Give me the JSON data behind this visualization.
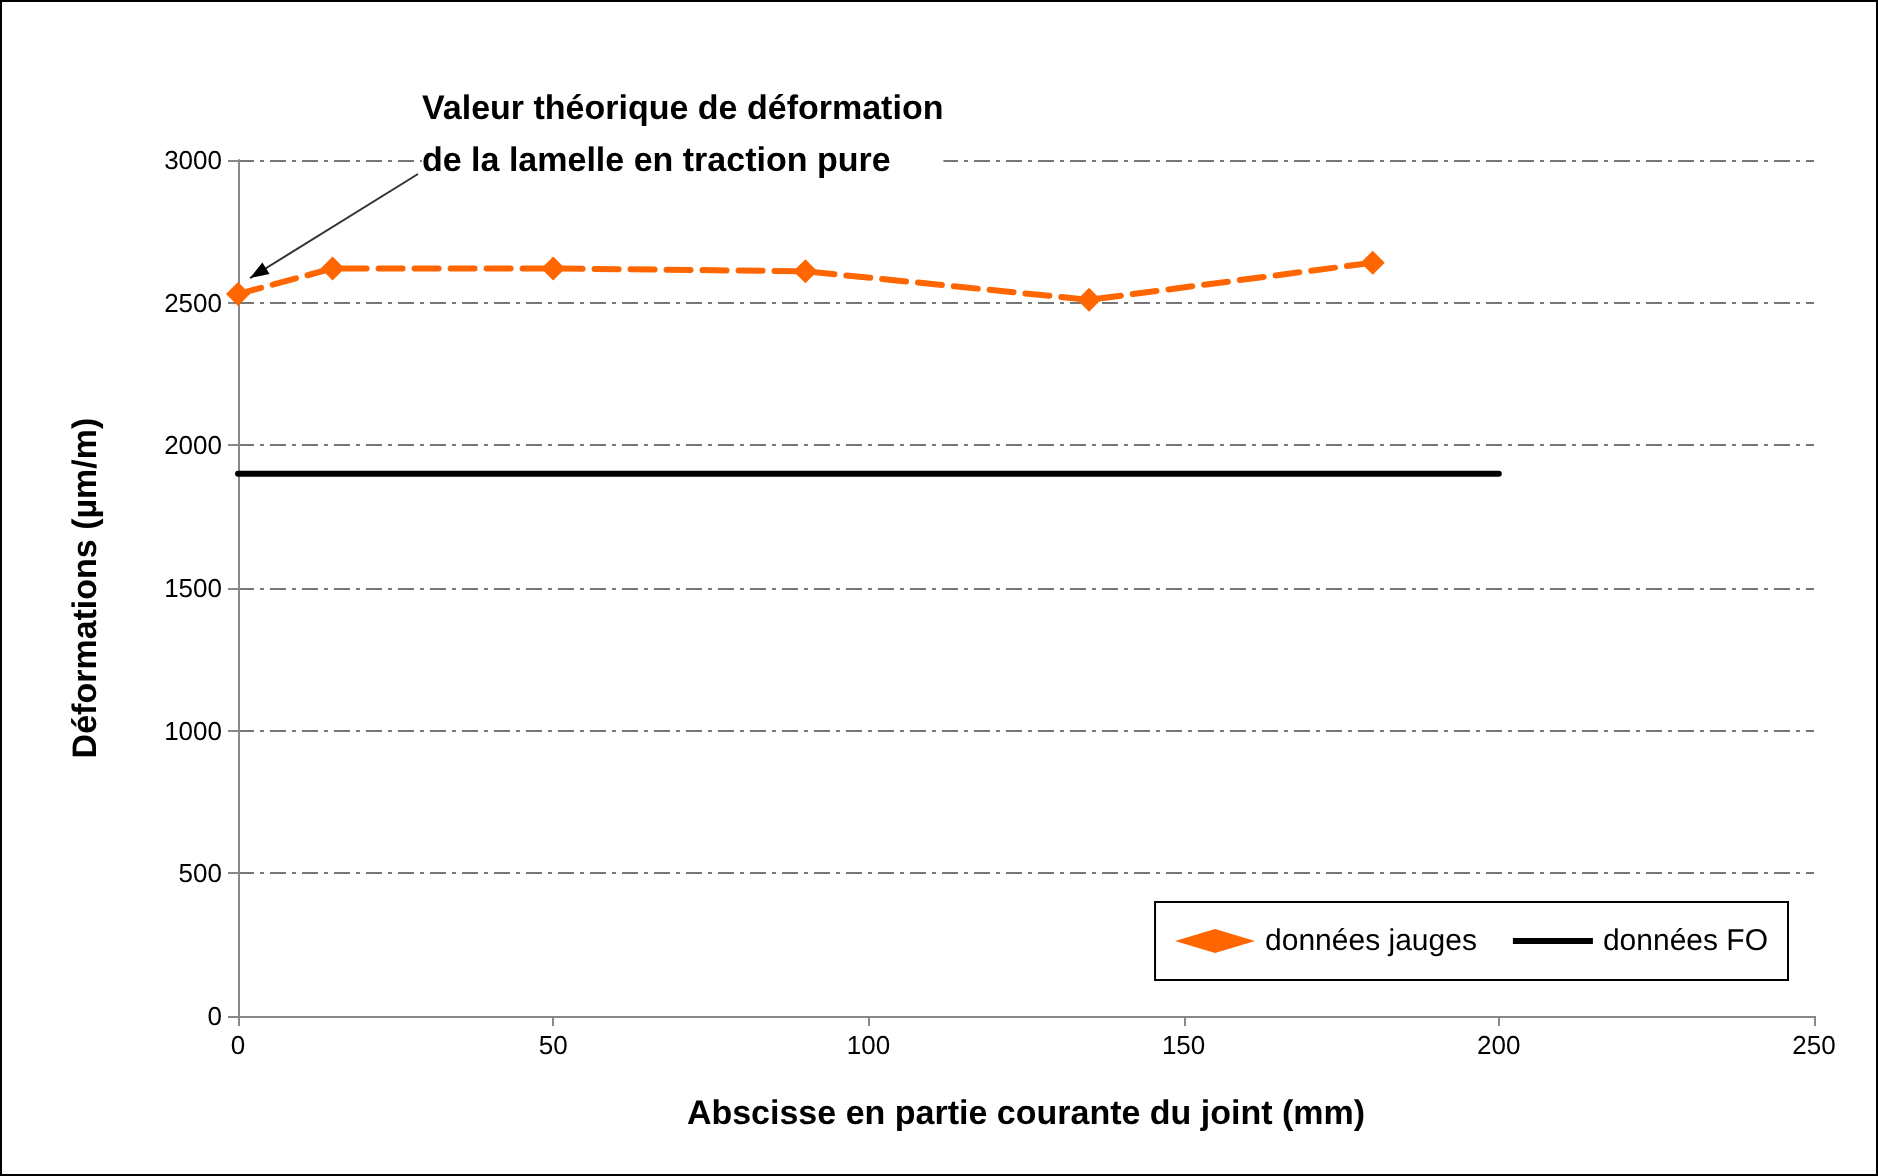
{
  "chart_data": {
    "type": "line",
    "xlabel": "Abscisse en partie courante du joint (mm)",
    "ylabel": "Déformations (µm/m)",
    "series": [
      {
        "name": "données jauges",
        "color": "#ff6600",
        "x": [
          0,
          15,
          50,
          90,
          135,
          180
        ],
        "values": [
          2530,
          2620,
          2620,
          2610,
          2510,
          2640
        ],
        "marker": "diamond",
        "line_style": "dashed"
      },
      {
        "name": "données FO",
        "color": "#000000",
        "x": [
          0,
          200
        ],
        "values": [
          1900,
          1900
        ],
        "marker": "none",
        "line_style": "solid"
      }
    ],
    "xlim": [
      0,
      250
    ],
    "xticks": [
      0,
      50,
      100,
      150,
      200,
      250
    ],
    "ylim": [
      0,
      3000
    ],
    "yticks": [
      0,
      500,
      1000,
      1500,
      2000,
      2500,
      3000
    ],
    "grid": "y",
    "legend": "bottom right",
    "annotations": [
      "Valeur théorique de déformation\nde la lamelle en traction pure"
    ]
  }
}
